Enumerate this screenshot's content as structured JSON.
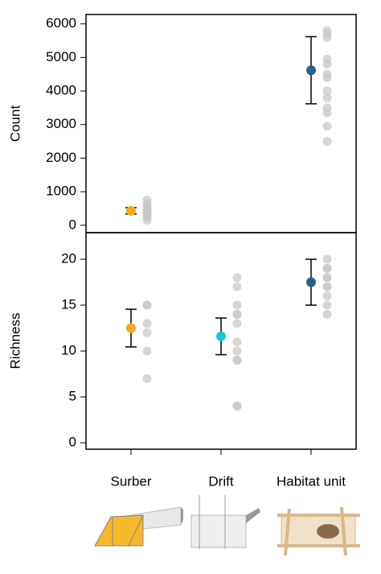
{
  "chart_data": [
    {
      "type": "errorbar",
      "y_label": "Count",
      "ylim": [
        -220,
        6280
      ],
      "yticks": [
        0,
        1000,
        2000,
        3000,
        4000,
        5000,
        6000
      ],
      "values": [
        430,
        null,
        4620
      ],
      "errors": [
        95,
        null,
        1000
      ],
      "colors": [
        "#f5a81c",
        null,
        "#2d5f8a"
      ],
      "raw_color": "#c8c8c8",
      "raw": [
        [
          750,
          650,
          580,
          500,
          450,
          400,
          350,
          300,
          250,
          150
        ],
        [],
        [
          5800,
          5700,
          5600,
          4950,
          4800,
          4500,
          4400,
          4000,
          3800,
          3500,
          3350,
          2950,
          2500
        ]
      ]
    },
    {
      "type": "errorbar",
      "y_label": "Richness",
      "ylim": [
        -0.7,
        22.9
      ],
      "yticks": [
        0,
        5,
        10,
        15,
        20
      ],
      "categories": [
        "Surber",
        "Drift",
        "Habitat unit"
      ],
      "values": [
        12.5,
        11.6,
        17.5
      ],
      "errors": [
        2.05,
        2,
        2.5
      ],
      "colors": [
        "#f5a81c",
        "#1ec8c8",
        "#2d5f8a"
      ],
      "raw_color": "#c8c8c8",
      "raw": [
        [
          15,
          15,
          13,
          12,
          10,
          7
        ],
        [
          18,
          17,
          15,
          14,
          14,
          13,
          11,
          10,
          9,
          9,
          4,
          4
        ],
        [
          20,
          19,
          19,
          18,
          18,
          17,
          17,
          16,
          15,
          14
        ]
      ]
    }
  ]
}
